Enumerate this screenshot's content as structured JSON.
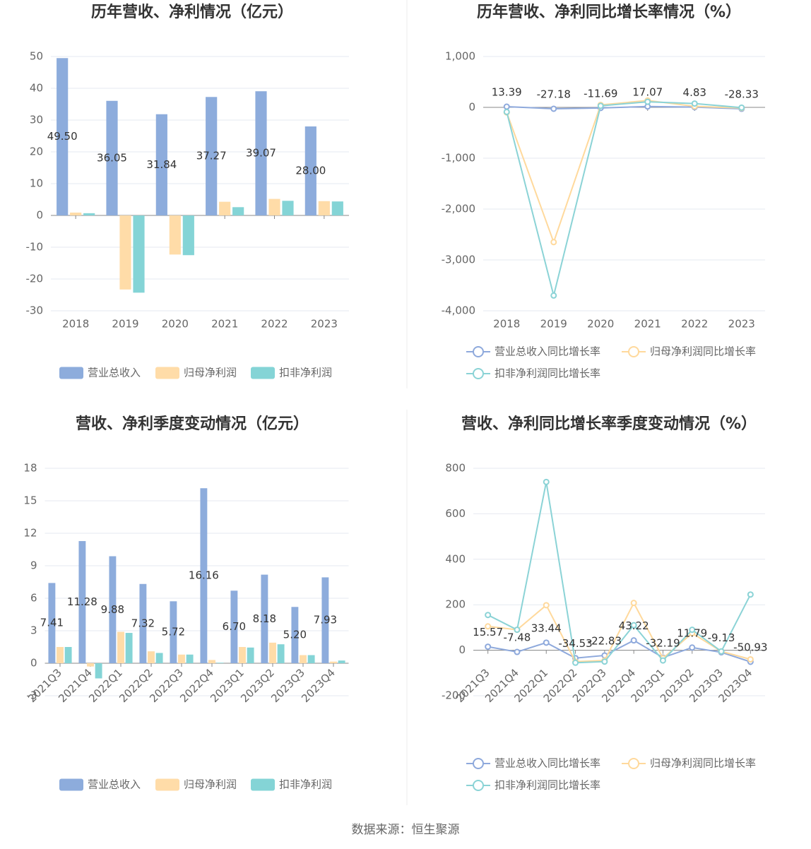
{
  "chart_data": [
    {
      "type": "bar",
      "title": "历年营收、净利情况（亿元）",
      "categories": [
        "2018",
        "2019",
        "2020",
        "2021",
        "2022",
        "2023"
      ],
      "series": [
        {
          "name": "营业总收入",
          "color": "#8dacdc",
          "values": [
            49.5,
            36.05,
            31.84,
            37.27,
            39.07,
            28.0
          ],
          "value_labels": [
            "49.50",
            "36.05",
            "31.84",
            "37.27",
            "39.07",
            "28.00"
          ]
        },
        {
          "name": "归母净利润",
          "color": "#ffdca8",
          "values": [
            0.9,
            -23.3,
            -12.3,
            4.3,
            5.2,
            4.5
          ]
        },
        {
          "name": "扣非净利润",
          "color": "#84d4d6",
          "values": [
            0.7,
            -24.3,
            -12.5,
            2.6,
            4.6,
            4.4
          ]
        }
      ],
      "ylim": [
        -30,
        50
      ],
      "yticks": [
        -30,
        -20,
        -10,
        0,
        10,
        20,
        30,
        40,
        50
      ],
      "grid": true
    },
    {
      "type": "line",
      "title": "历年营收、净利同比增长率情况（%）",
      "categories": [
        "2018",
        "2019",
        "2020",
        "2021",
        "2022",
        "2023"
      ],
      "series": [
        {
          "name": "营业总收入同比增长率",
          "color": "#8ea9dc",
          "values": [
            13.39,
            -27.18,
            -11.69,
            17.07,
            4.83,
            -28.33
          ]
        },
        {
          "name": "归母净利润同比增长率",
          "color": "#ffd99c",
          "values": [
            -100,
            -2650,
            47,
            135,
            20,
            -13
          ]
        },
        {
          "name": "扣非净利润同比增长率",
          "color": "#8bd3d6",
          "values": [
            -90,
            -3700,
            30,
            110,
            75,
            -5
          ]
        }
      ],
      "ylim": [
        -4000,
        1000
      ],
      "yticks": [
        {
          "value": -4000,
          "label": "-4,000"
        },
        {
          "value": -3000,
          "label": "-3,000"
        },
        {
          "value": -2000,
          "label": "-2,000"
        },
        {
          "value": -1000,
          "label": "-1,000"
        },
        0,
        {
          "value": 1000,
          "label": "1,000"
        }
      ],
      "grid": true
    },
    {
      "type": "bar",
      "title": "营收、净利季度变动情况（亿元）",
      "categories": [
        "2021Q3",
        "2021Q4",
        "2022Q1",
        "2022Q2",
        "2022Q3",
        "2022Q4",
        "2023Q1",
        "2023Q2",
        "2023Q3",
        "2023Q4"
      ],
      "series": [
        {
          "name": "营业总收入",
          "color": "#8dacdc",
          "values": [
            7.41,
            11.28,
            9.88,
            7.32,
            5.72,
            16.16,
            6.7,
            8.18,
            5.2,
            7.93
          ],
          "value_labels": [
            "7.41",
            "11.28",
            "9.88",
            "7.32",
            "5.72",
            "16.16",
            "6.70",
            "8.18",
            "5.20",
            "7.93"
          ]
        },
        {
          "name": "归母净利润",
          "color": "#ffdca8",
          "values": [
            1.5,
            -0.3,
            2.9,
            1.1,
            0.8,
            0.3,
            1.5,
            1.9,
            0.75,
            0.15
          ]
        },
        {
          "name": "扣非净利润",
          "color": "#84d4d6",
          "values": [
            1.5,
            -1.4,
            2.8,
            0.95,
            0.8,
            0.05,
            1.45,
            1.75,
            0.75,
            0.25
          ]
        }
      ],
      "ylim": [
        -3,
        18
      ],
      "yticks": [
        -3,
        0,
        3,
        6,
        9,
        12,
        15,
        18
      ],
      "grid": true
    },
    {
      "type": "line",
      "title": "营收、净利同比增长率季度变动情况（%）",
      "categories": [
        "2021Q3",
        "2021Q4",
        "2022Q1",
        "2022Q2",
        "2022Q3",
        "2022Q4",
        "2023Q1",
        "2023Q2",
        "2023Q3",
        "2023Q4"
      ],
      "series": [
        {
          "name": "营业总收入同比增长率",
          "color": "#8ea9dc",
          "values": [
            15.57,
            -7.48,
            33.44,
            -34.53,
            -22.83,
            43.22,
            -32.19,
            11.79,
            -9.13,
            -50.93
          ]
        },
        {
          "name": "归母净利润同比增长率",
          "color": "#ffd99c",
          "values": [
            105,
            90,
            198,
            -50,
            -45,
            208,
            -35,
            75,
            -5,
            -40
          ]
        },
        {
          "name": "扣非净利润同比增长率",
          "color": "#8bd3d6",
          "values": [
            155,
            90,
            740,
            -55,
            -50,
            110,
            -45,
            90,
            -5,
            245
          ]
        }
      ],
      "ylim": [
        -200,
        800
      ],
      "yticks": [
        -200,
        0,
        200,
        400,
        600,
        800
      ],
      "grid": true
    }
  ],
  "footer": "数据来源：恒生聚源"
}
